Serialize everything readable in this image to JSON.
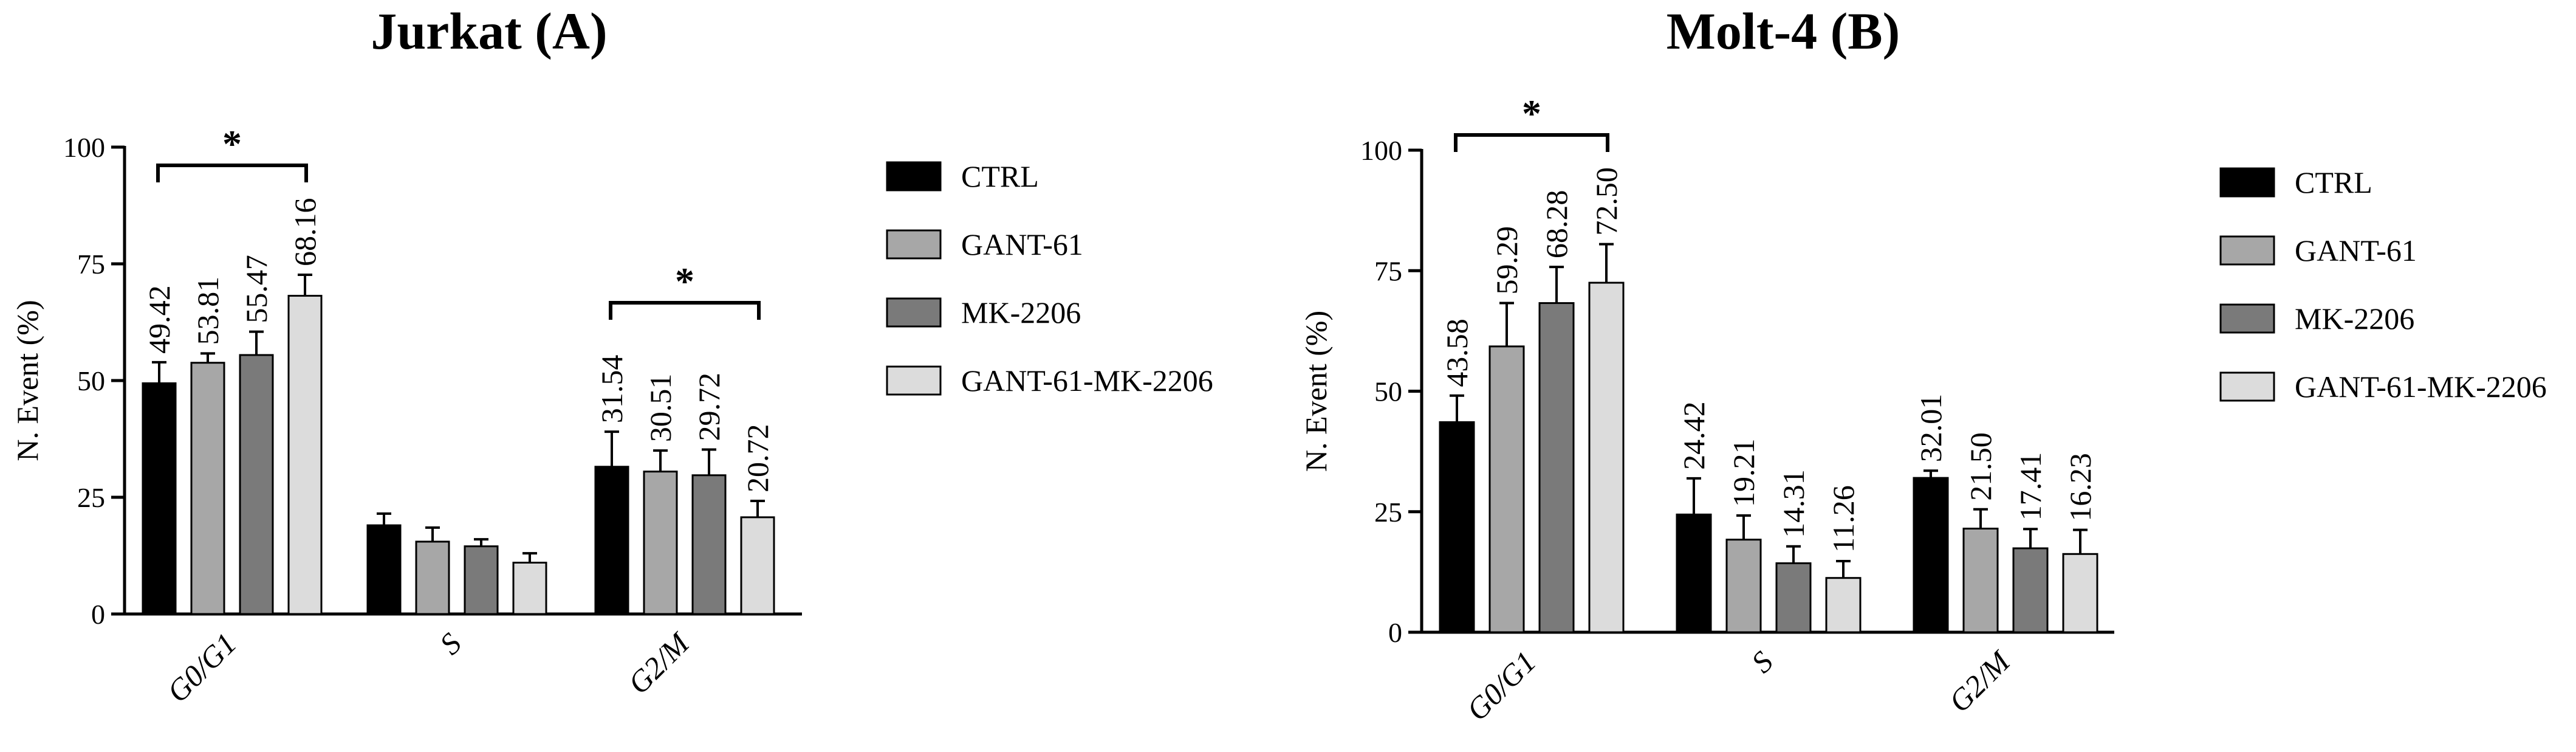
{
  "chart_data": [
    {
      "type": "bar",
      "title": "Jurkat (A)",
      "ylabel": "N. Event (%)",
      "xlabel": "",
      "ylim": [
        0,
        100
      ],
      "yticks": [
        "0",
        "25",
        "50",
        "75",
        "100"
      ],
      "categories": [
        "G0/G1",
        "S",
        "G2/M"
      ],
      "series": [
        {
          "name": "CTRL",
          "values": [
            49.42,
            19,
            31.54
          ],
          "errors": [
            4.5,
            2.5,
            7.5
          ],
          "labels": [
            "49.42",
            "",
            "31.54"
          ]
        },
        {
          "name": "GANT-61",
          "values": [
            53.81,
            15.5,
            30.51
          ],
          "errors": [
            2,
            3,
            4.5
          ],
          "labels": [
            "53.81",
            "",
            "30.51"
          ]
        },
        {
          "name": "MK-2206",
          "values": [
            55.47,
            14.5,
            29.72
          ],
          "errors": [
            5,
            1.5,
            5.5
          ],
          "labels": [
            "55.47",
            "",
            "29.72"
          ]
        },
        {
          "name": "GANT-61-MK-2206",
          "values": [
            68.16,
            11,
            20.72
          ],
          "errors": [
            4.5,
            2,
            3.5
          ],
          "labels": [
            "68.16",
            "",
            "20.72"
          ]
        }
      ],
      "significance": [
        {
          "category": "G0/G1",
          "label": "*"
        },
        {
          "category": "G2/M",
          "label": "*"
        }
      ],
      "legend_position": "right"
    },
    {
      "type": "bar",
      "title": "Molt-4 (B)",
      "ylabel": "N. Event (%)",
      "xlabel": "",
      "ylim": [
        0,
        100
      ],
      "yticks": [
        "0",
        "25",
        "50",
        "75",
        "100"
      ],
      "categories": [
        "G0/G1",
        "S",
        "G2/M"
      ],
      "series": [
        {
          "name": "CTRL",
          "values": [
            43.58,
            24.42,
            32.01
          ],
          "errors": [
            5.5,
            7.5,
            1.5
          ],
          "labels": [
            "43.58",
            "24.42",
            "32.01"
          ]
        },
        {
          "name": "GANT-61",
          "values": [
            59.29,
            19.21,
            21.5
          ],
          "errors": [
            9,
            5,
            4
          ],
          "labels": [
            "59.29",
            "19.21",
            "21.50"
          ]
        },
        {
          "name": "MK-2206",
          "values": [
            68.28,
            14.31,
            17.41
          ],
          "errors": [
            7.5,
            3.5,
            4
          ],
          "labels": [
            "68.28",
            "14.31",
            "17.41"
          ]
        },
        {
          "name": "GANT-61-MK-2206",
          "values": [
            72.5,
            11.26,
            16.23
          ],
          "errors": [
            8,
            3.5,
            5
          ],
          "labels": [
            "72.50",
            "11.26",
            "16.23"
          ]
        }
      ],
      "significance": [
        {
          "category": "G0/G1",
          "label": "*"
        }
      ],
      "legend_position": "right"
    }
  ],
  "colors": {
    "CTRL": "#000000",
    "GANT-61": "#a7a7a7",
    "MK-2206": "#7a7a7a",
    "GANT-61-MK-2206": "#dcdcdc"
  }
}
